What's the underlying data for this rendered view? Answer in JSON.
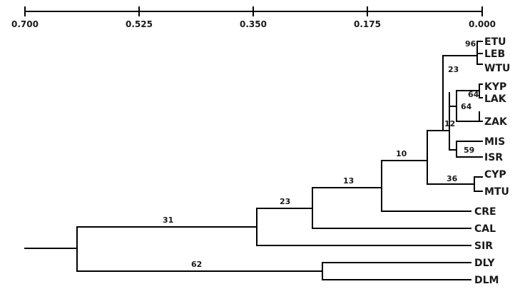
{
  "axis": {
    "ticks": [
      "0.700",
      "0.525",
      "0.350",
      "0.175",
      "0.000"
    ]
  },
  "taxa": [
    "ETU",
    "LEB",
    "WTU",
    "KYP",
    "LAK",
    "ZAK",
    "MIS",
    "ISR",
    "CYP",
    "MTU",
    "CRE",
    "CAL",
    "SIR",
    "DLY",
    "DLM"
  ],
  "bootstrap": [
    "96",
    "23",
    "64",
    "64",
    "12",
    "59",
    "36",
    "10",
    "13",
    "23",
    "31",
    "62"
  ]
}
